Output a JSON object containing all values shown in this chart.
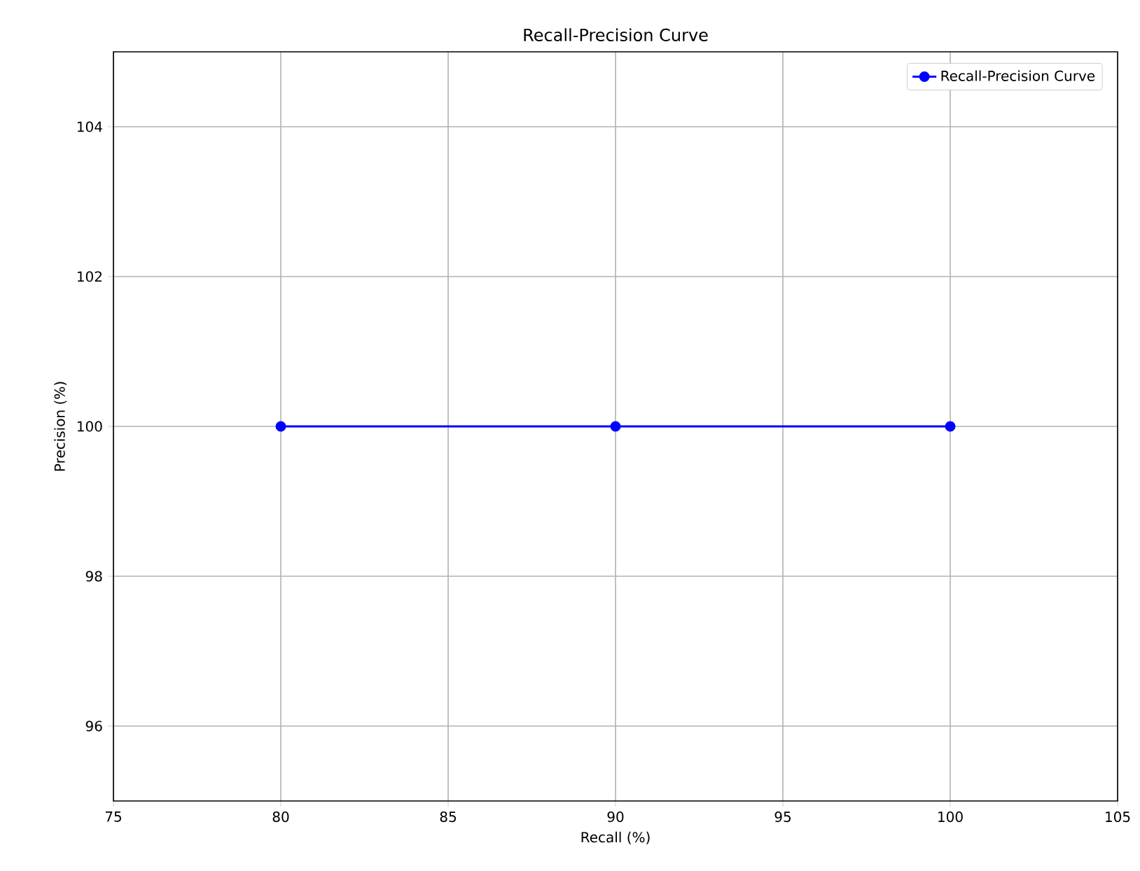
{
  "chart_data": {
    "type": "line",
    "title": "Recall-Precision Curve",
    "xlabel": "Recall (%)",
    "ylabel": "Precision (%)",
    "x": [
      80,
      90,
      100
    ],
    "series": [
      {
        "name": "Recall-Precision Curve",
        "color": "#0000ff",
        "values": [
          100,
          100,
          100
        ]
      }
    ],
    "xlim": [
      75,
      105
    ],
    "xticks": [
      75,
      80,
      85,
      90,
      95,
      100,
      105
    ],
    "ylim": [
      95,
      105
    ],
    "yticks": [
      96,
      98,
      100,
      102,
      104
    ],
    "grid": true,
    "legend": "top right",
    "marker": "circle",
    "line_style": "solid"
  }
}
